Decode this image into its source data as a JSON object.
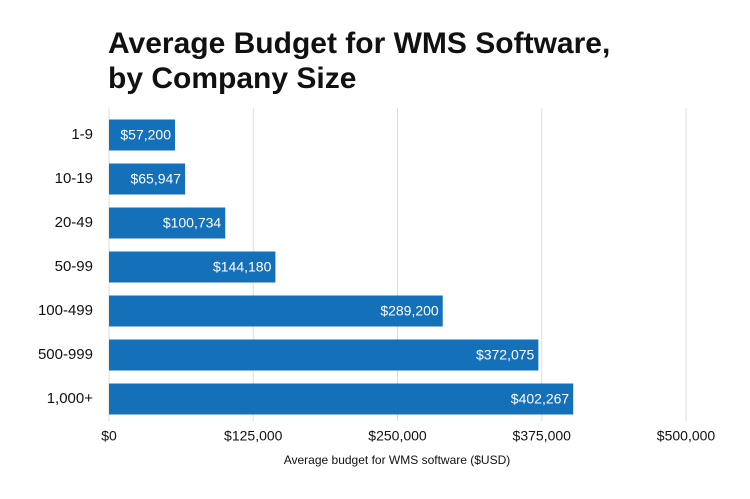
{
  "chart_data": {
    "type": "bar",
    "orientation": "horizontal",
    "title": [
      "Average Budget for WMS Software,",
      "by Company Size"
    ],
    "xlabel": "Average budget for WMS software ($USD)",
    "categories": [
      "1-9",
      "10-19",
      "20-49",
      "50-99",
      "100-499",
      "500-999",
      "1,000+"
    ],
    "values": [
      57200,
      65947,
      100734,
      144180,
      289200,
      372075,
      402267
    ],
    "value_labels": [
      "$57,200",
      "$65,947",
      "$100,734",
      "$144,180",
      "$289,200",
      "$372,075",
      "$402,267"
    ],
    "color": "#1470b8",
    "xlim": [
      0,
      500000
    ],
    "xticks": [
      {
        "value": 0,
        "label": "$0"
      },
      {
        "value": 125000,
        "label": "$125,000"
      },
      {
        "value": 250000,
        "label": "$250,000"
      },
      {
        "value": 375000,
        "label": "$375,000"
      },
      {
        "value": 500000,
        "label": "$500,000"
      }
    ],
    "grid": true
  }
}
